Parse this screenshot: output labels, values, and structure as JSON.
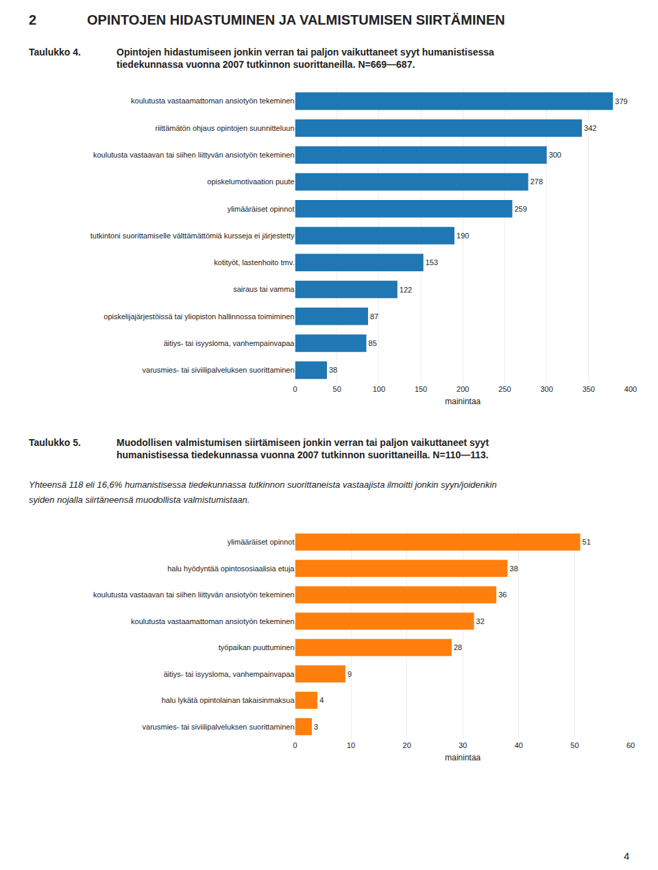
{
  "title": "OPINTOJEN HIDASTUMINEN JA VALMISTUMISEN SIIRTÄMINEN",
  "annotations": [
    "2",
    "4"
  ],
  "chart_data": [
    {
      "type": "bar",
      "title": "Taulukko 4.",
      "subtitle": "Opintojen hidastumiseen jonkin verran tai paljon vaikuttaneet syyt humanistisessa\ntiedekunnassa vuonna 2007 tutkinnon suorittaneilla. N=669—687.",
      "orientation": "horizontal",
      "categories": [
        "koulutusta vastaamattoman ansiotyön tekeminen",
        "riittämätön ohjaus opintojen suunnitteluun",
        "koulutusta vastaavan tai siihen liittyvän ansiotyön tekeminen",
        "opiskelumotivaation puute",
        "ylimääräiset opinnot",
        "tutkintoni suorittamiselle välttämättömiä kursseja ei järjestetty",
        "kotityöt, lastenhoito tmv.",
        "sairaus tai vamma",
        "opiskelijajärjestöissä tai yliopiston hallinnossa toimiminen",
        "äitiys- tai isyysloma, vanhempainvapaa",
        "varusmies- tai siviilipalveluksen suorittaminen"
      ],
      "values": [
        379,
        342,
        300,
        278,
        259,
        190,
        153,
        122,
        87,
        85,
        38
      ],
      "xlim": [
        0,
        400
      ],
      "xticks": [
        0,
        50,
        100,
        150,
        200,
        250,
        300,
        350,
        400
      ],
      "xlabel": "mainintaa",
      "grid": true,
      "data_labels": true
    },
    {
      "type": "bar",
      "title": "Taulukko 5.",
      "subtitle": "Muodollisen valmistumisen siirtämiseen jonkin verran tai paljon vaikuttaneet syyt\nhumanistisessa tiedekunnassa vuonna 2007 tutkinnon suorittaneilla. N=110—113.",
      "annotations": [
        "Yhteensä 118 eli 16,6% humanistisessa tiedekunnassa tutkinnon suorittaneista vastaajista ilmoitti jonkin syyn/joidenkin",
        "syiden nojalla siirtäneensä muodollista valmistumistaan."
      ],
      "orientation": "horizontal",
      "categories": [
        "ylimääräiset opinnot",
        "halu hyödyntää opintososiaalisia etuja",
        "koulutusta vastaavan tai siihen liittyvän ansiotyön tekeminen",
        "koulutusta vastaamattoman ansiotyön tekeminen",
        "työpaikan puuttuminen",
        "äitiys- tai isyysloma, vanhempainvapaa",
        "halu lykätä opintolainan takaisinmaksua",
        "varusmies- tai siviilipalveluksen suorittaminen"
      ],
      "values": [
        51,
        38,
        36,
        32,
        28,
        9,
        4,
        3
      ],
      "xlim": [
        0,
        60
      ],
      "xticks": [
        0,
        10,
        20,
        30,
        40,
        50,
        60
      ],
      "xlabel": "mainintaa",
      "grid": true,
      "data_labels": true
    }
  ]
}
